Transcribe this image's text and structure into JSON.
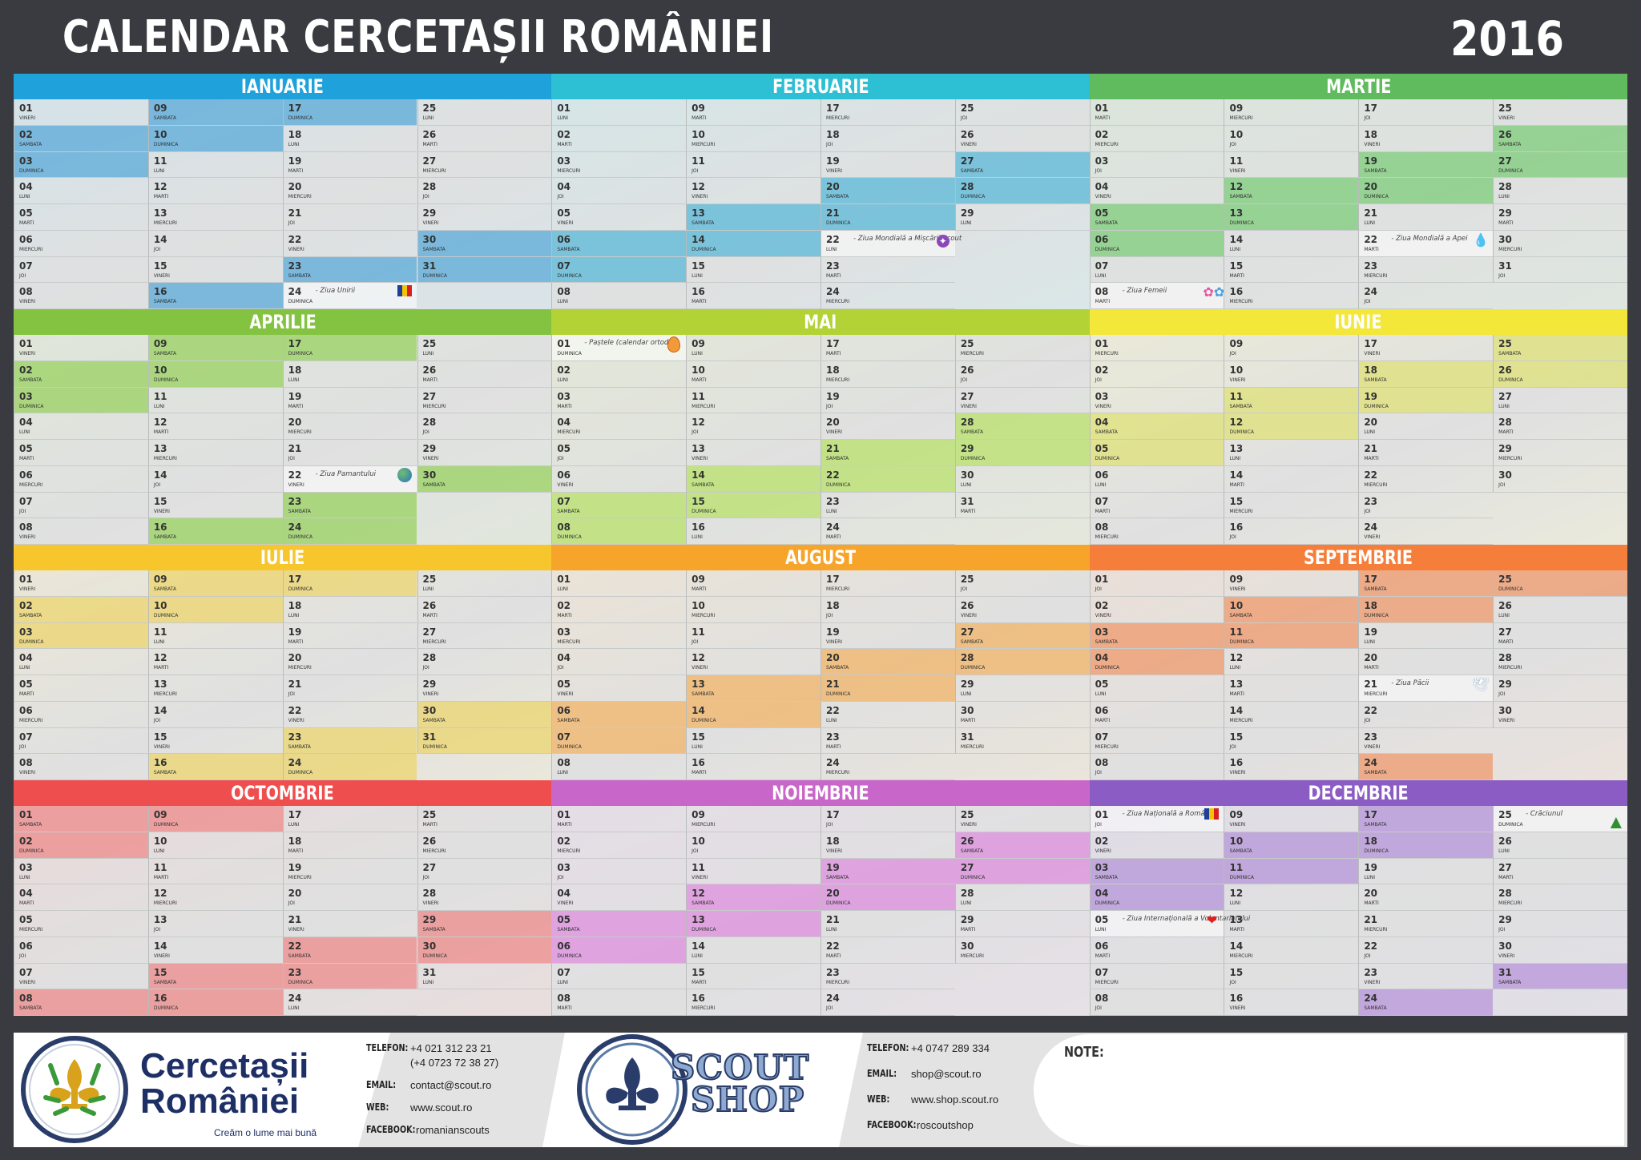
{
  "header": {
    "title": "CALENDAR CERCETAȘII ROMÂNIEI",
    "year": "2016"
  },
  "weekdays": [
    "LUNI",
    "MARTI",
    "MIERCURI",
    "JOI",
    "VINERI",
    "SAMBATA",
    "DUMINICA"
  ],
  "months": [
    {
      "name": "IANUARIE",
      "color": "#1fa1dc",
      "hl": "#5aaad8",
      "first_dow": 4,
      "days": 31,
      "events": [
        {
          "day": 24,
          "text": "- Ziua Unirii",
          "icon": "flag-icon"
        }
      ]
    },
    {
      "name": "FEBRUARIE",
      "color": "#2dbfd4",
      "hl": "#5ab8d8",
      "first_dow": 0,
      "days": 29,
      "events": [
        {
          "day": 22,
          "text": "- Ziua Mondială a Mișcării Scout",
          "icon": "scout-badge-icon"
        }
      ]
    },
    {
      "name": "MARTIE",
      "color": "#5fbb5e",
      "hl": "#7dcc7a",
      "first_dow": 1,
      "days": 31,
      "events": [
        {
          "day": 8,
          "text": "- Ziua Femeii",
          "icon": "flowers-icon"
        },
        {
          "day": 22,
          "text": "- Ziua Mondială a Apei",
          "icon": "water-drop-icon"
        }
      ]
    },
    {
      "name": "APRILIE",
      "color": "#84c341",
      "hl": "#9ad260",
      "first_dow": 4,
      "days": 30,
      "events": [
        {
          "day": 22,
          "text": "- Ziua Pamantului",
          "icon": "earth-icon"
        }
      ]
    },
    {
      "name": "MAI",
      "color": "#b2d235",
      "hl": "#b9e26a",
      "first_dow": 6,
      "days": 31,
      "events": [
        {
          "day": 1,
          "text": "- Paștele (calendar ortodox)",
          "icon": "easter-egg-icon"
        }
      ]
    },
    {
      "name": "IUNIE",
      "color": "#f3e73a",
      "hl": "#dfe278",
      "first_dow": 2,
      "days": 30,
      "events": []
    },
    {
      "name": "IULIE",
      "color": "#f7c52c",
      "hl": "#ecd66e",
      "first_dow": 4,
      "days": 31,
      "events": []
    },
    {
      "name": "AUGUST",
      "color": "#f7a52a",
      "hl": "#f2b468",
      "first_dow": 0,
      "days": 31,
      "events": []
    },
    {
      "name": "SEPTEMBRIE",
      "color": "#f57e3a",
      "hl": "#ef9a6c",
      "first_dow": 3,
      "days": 30,
      "events": [
        {
          "day": 21,
          "text": "- Ziua Păcii",
          "icon": "dove-icon"
        }
      ]
    },
    {
      "name": "OCTOMBRIE",
      "color": "#ee4e4e",
      "hl": "#ed8b8b",
      "first_dow": 5,
      "days": 31,
      "events": []
    },
    {
      "name": "NOIEMBRIE",
      "color": "#c966c9",
      "hl": "#dd8fdd",
      "first_dow": 1,
      "days": 30,
      "events": []
    },
    {
      "name": "DECEMBRIE",
      "color": "#8c5cc5",
      "hl": "#b796d9",
      "first_dow": 3,
      "days": 31,
      "events": [
        {
          "day": 1,
          "text": "- Ziua Națională a României",
          "icon": "flag-icon"
        },
        {
          "day": 5,
          "text": "- Ziua Internațională a Voluntariatului",
          "icon": "heart-icon"
        },
        {
          "day": 25,
          "text": "- Crăciunul",
          "icon": "christmas-tree-icon"
        }
      ]
    }
  ],
  "footer": {
    "org": {
      "line1": "Cercetașii",
      "line2": "României",
      "tagline": "Creăm o lume mai bună"
    },
    "contact1": [
      {
        "label": "TELEFON:",
        "value": "+4 021 312 23 21"
      },
      {
        "label": "",
        "value": "(+4 0723 72 38 27)"
      },
      {
        "label": "EMAIL:",
        "value": "contact@scout.ro"
      },
      {
        "label": "WEB:",
        "value": "www.scout.ro"
      },
      {
        "label": "FACEBOOK:",
        "value": "romanianscouts"
      }
    ],
    "shop": {
      "line1": "SCOUT",
      "line2": "SHOP"
    },
    "contact2": [
      {
        "label": "TELEFON:",
        "value": "+4 0747 289 334"
      },
      {
        "label": "EMAIL:",
        "value": "shop@scout.ro"
      },
      {
        "label": "WEB:",
        "value": "www.shop.scout.ro"
      },
      {
        "label": "FACEBOOK:",
        "value": "roscoutshop"
      }
    ],
    "note_label": "NOTE:"
  }
}
